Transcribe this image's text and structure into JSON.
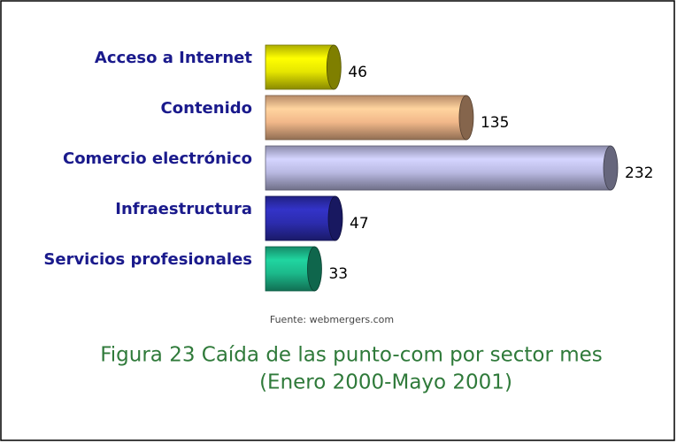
{
  "chart_data": {
    "type": "bar",
    "categories": [
      "Acceso a Internet",
      "Contenido",
      "Comercio electrónico",
      "Infraestructura",
      "Servicios profesionales"
    ],
    "values": [
      46,
      135,
      232,
      47,
      33
    ],
    "colors": [
      "#e6e600",
      "#f2b88a",
      "#b9b9e2",
      "#2c2cae",
      "#1cb98b"
    ],
    "source": "Fuente: webmergers.com",
    "caption": [
      "Figura 23 Caída de las punto-com por sector mes",
      "(Enero 2000-Mayo 2001)"
    ]
  }
}
